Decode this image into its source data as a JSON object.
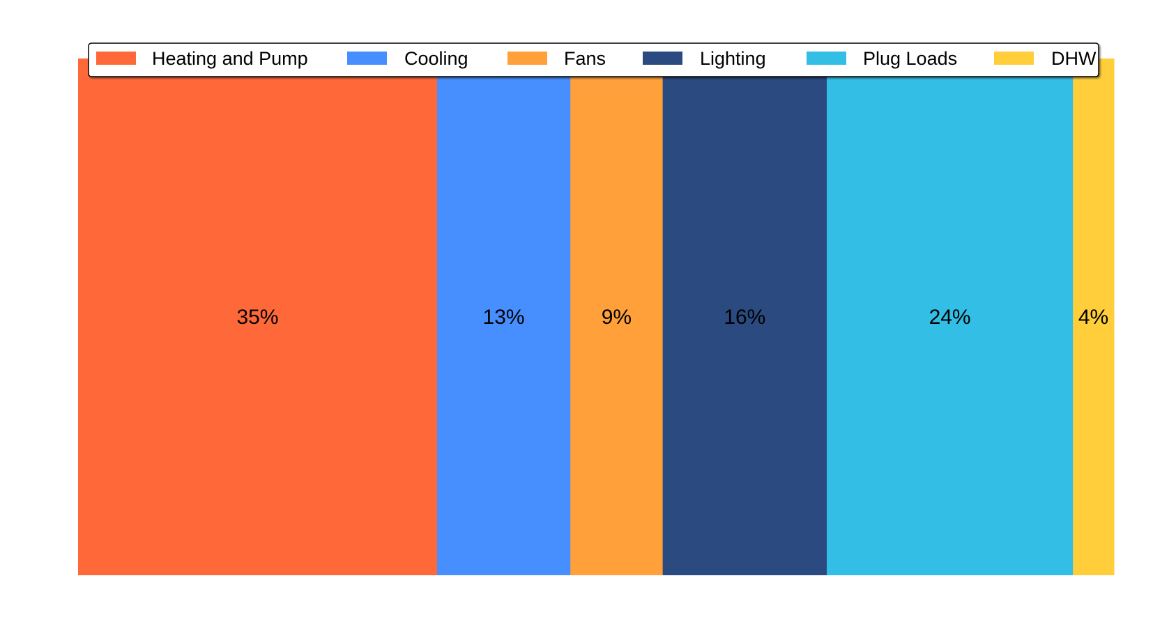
{
  "chart_data": {
    "type": "bar",
    "orientation": "horizontal-stacked-100",
    "title": "",
    "xlabel": "",
    "ylabel": "",
    "xlim": [
      0,
      100
    ],
    "grid": false,
    "legend_position": "top",
    "series": [
      {
        "name": "Heating and Pump",
        "value": 35,
        "label": "35%",
        "color": "#FF693A"
      },
      {
        "name": "Cooling",
        "value": 13,
        "label": "13%",
        "color": "#478FFF"
      },
      {
        "name": "Fans",
        "value": 9,
        "label": "9%",
        "color": "#FFA03B"
      },
      {
        "name": "Lighting",
        "value": 16,
        "label": "16%",
        "color": "#2A4A80"
      },
      {
        "name": "Plug Loads",
        "value": 24,
        "label": "24%",
        "color": "#33BEE6"
      },
      {
        "name": "DHW",
        "value": 4,
        "label": "4%",
        "color": "#FFCE3A"
      }
    ]
  }
}
